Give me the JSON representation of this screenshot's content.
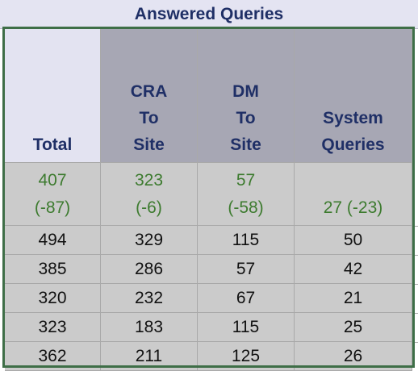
{
  "table": {
    "title": "Answered Queries",
    "headers": [
      "Total",
      "CRA\nTo\nSite",
      "DM\nTo\nSite",
      "System\nQueries"
    ],
    "summary": {
      "total": "407\n(-87)",
      "cra": "323\n(-6)",
      "dm": "57\n(-58)",
      "system": "27 (-23)"
    },
    "rows": [
      [
        "494",
        "329",
        "115",
        "50"
      ],
      [
        "385",
        "286",
        "57",
        "42"
      ],
      [
        "320",
        "232",
        "67",
        "21"
      ],
      [
        "323",
        "183",
        "115",
        "25"
      ],
      [
        "362",
        "211",
        "125",
        "26"
      ]
    ]
  },
  "colors": {
    "title_text": "#1f2f66",
    "header_gray": "#a7a7b4",
    "header_light": "#e3e3f1",
    "body_gray": "#cbcbcb",
    "delta_green": "#3d7b2f",
    "frame_green": "#3e6e47"
  }
}
